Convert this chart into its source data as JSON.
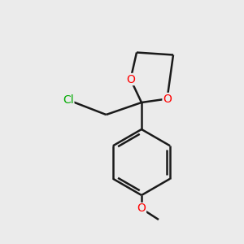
{
  "background_color": "#ebebeb",
  "bond_color": "#1a1a1a",
  "oxygen_color": "#ff0000",
  "chlorine_color": "#00aa00",
  "line_width": 1.8,
  "figsize": [
    3.0,
    3.0
  ],
  "dpi": 100,
  "xlim": [
    0,
    10
  ],
  "ylim": [
    0,
    10
  ],
  "font_size": 10.0
}
